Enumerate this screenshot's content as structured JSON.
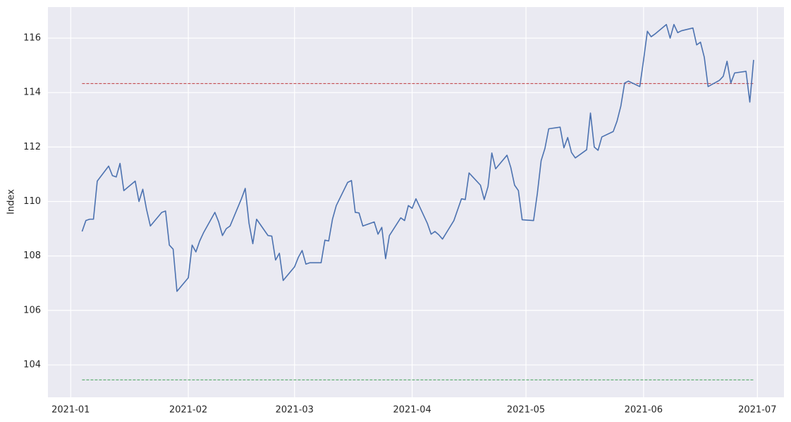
{
  "chart_data": {
    "type": "line",
    "ylabel": "Index",
    "x": [
      "2021-01-04",
      "2021-01-05",
      "2021-01-06",
      "2021-01-07",
      "2021-01-08",
      "2021-01-11",
      "2021-01-12",
      "2021-01-13",
      "2021-01-14",
      "2021-01-15",
      "2021-01-18",
      "2021-01-19",
      "2021-01-20",
      "2021-01-21",
      "2021-01-22",
      "2021-01-25",
      "2021-01-26",
      "2021-01-27",
      "2021-01-28",
      "2021-01-29",
      "2021-02-01",
      "2021-02-02",
      "2021-02-03",
      "2021-02-04",
      "2021-02-05",
      "2021-02-08",
      "2021-02-09",
      "2021-02-10",
      "2021-02-11",
      "2021-02-12",
      "2021-02-15",
      "2021-02-16",
      "2021-02-17",
      "2021-02-18",
      "2021-02-19",
      "2021-02-22",
      "2021-02-23",
      "2021-02-24",
      "2021-02-25",
      "2021-02-26",
      "2021-03-01",
      "2021-03-02",
      "2021-03-03",
      "2021-03-04",
      "2021-03-05",
      "2021-03-08",
      "2021-03-09",
      "2021-03-10",
      "2021-03-11",
      "2021-03-12",
      "2021-03-15",
      "2021-03-16",
      "2021-03-17",
      "2021-03-18",
      "2021-03-19",
      "2021-03-22",
      "2021-03-23",
      "2021-03-24",
      "2021-03-25",
      "2021-03-26",
      "2021-03-29",
      "2021-03-30",
      "2021-03-31",
      "2021-04-01",
      "2021-04-02",
      "2021-04-05",
      "2021-04-06",
      "2021-04-07",
      "2021-04-08",
      "2021-04-09",
      "2021-04-12",
      "2021-04-13",
      "2021-04-14",
      "2021-04-15",
      "2021-04-16",
      "2021-04-19",
      "2021-04-20",
      "2021-04-21",
      "2021-04-22",
      "2021-04-23",
      "2021-04-26",
      "2021-04-27",
      "2021-04-28",
      "2021-04-29",
      "2021-04-30",
      "2021-05-03",
      "2021-05-04",
      "2021-05-05",
      "2021-05-06",
      "2021-05-07",
      "2021-05-10",
      "2021-05-11",
      "2021-05-12",
      "2021-05-13",
      "2021-05-14",
      "2021-05-17",
      "2021-05-18",
      "2021-05-19",
      "2021-05-20",
      "2021-05-21",
      "2021-05-24",
      "2021-05-25",
      "2021-05-26",
      "2021-05-27",
      "2021-05-28",
      "2021-05-31",
      "2021-06-01",
      "2021-06-02",
      "2021-06-03",
      "2021-06-04",
      "2021-06-07",
      "2021-06-08",
      "2021-06-09",
      "2021-06-10",
      "2021-06-11",
      "2021-06-14",
      "2021-06-15",
      "2021-06-16",
      "2021-06-17",
      "2021-06-18",
      "2021-06-21",
      "2021-06-22",
      "2021-06-23",
      "2021-06-24",
      "2021-06-25",
      "2021-06-28",
      "2021-06-29",
      "2021-06-30"
    ],
    "series": [
      {
        "color": "#4c72b0",
        "values": [
          108.9,
          109.3,
          109.35,
          109.35,
          110.75,
          111.3,
          110.95,
          110.9,
          111.4,
          110.4,
          110.75,
          110.0,
          110.45,
          109.7,
          109.1,
          109.6,
          109.65,
          108.4,
          108.25,
          106.7,
          107.2,
          108.4,
          108.15,
          108.55,
          108.85,
          109.6,
          109.25,
          108.75,
          109.0,
          109.1,
          110.1,
          110.48,
          109.2,
          108.45,
          109.35,
          108.75,
          108.73,
          107.85,
          108.1,
          107.1,
          107.6,
          107.95,
          108.2,
          107.7,
          107.75,
          107.75,
          108.58,
          108.55,
          109.35,
          109.85,
          110.7,
          110.77,
          109.6,
          109.58,
          109.1,
          109.25,
          108.8,
          109.05,
          107.9,
          108.75,
          109.4,
          109.3,
          109.85,
          109.75,
          110.1,
          109.2,
          108.8,
          108.9,
          108.78,
          108.62,
          109.3,
          109.7,
          110.1,
          110.07,
          111.05,
          110.6,
          110.07,
          110.55,
          111.78,
          111.2,
          111.7,
          111.25,
          110.6,
          110.4,
          109.33,
          109.3,
          110.3,
          111.5,
          111.95,
          112.67,
          112.73,
          111.97,
          112.35,
          111.8,
          111.6,
          111.9,
          113.25,
          112.0,
          111.88,
          112.37,
          112.57,
          112.95,
          113.5,
          114.35,
          114.42,
          114.22,
          115.2,
          116.25,
          116.05,
          116.15,
          116.5,
          116.0,
          116.5,
          116.2,
          116.27,
          116.37,
          115.75,
          115.85,
          115.3,
          114.22,
          114.45,
          114.6,
          115.15,
          114.35,
          114.72,
          114.78,
          113.65,
          115.2
        ]
      }
    ],
    "reference_lines": [
      {
        "value": 114.33,
        "color": "#c44e52",
        "style": "dashed"
      },
      {
        "value": 103.45,
        "color": "#55a868",
        "style": "dashed"
      }
    ],
    "xlim": [
      "2020-12-26",
      "2021-07-08"
    ],
    "xticks": [
      {
        "value": "2021-01-01",
        "label": "2021-01"
      },
      {
        "value": "2021-02-01",
        "label": "2021-02"
      },
      {
        "value": "2021-03-01",
        "label": "2021-03"
      },
      {
        "value": "2021-04-01",
        "label": "2021-04"
      },
      {
        "value": "2021-05-01",
        "label": "2021-05"
      },
      {
        "value": "2021-06-01",
        "label": "2021-06"
      },
      {
        "value": "2021-07-01",
        "label": "2021-07"
      }
    ],
    "ylim": [
      102.81,
      117.14
    ],
    "yticks": [
      104,
      106,
      108,
      110,
      112,
      114,
      116
    ],
    "grid": true,
    "background": "#eaeaf2"
  }
}
